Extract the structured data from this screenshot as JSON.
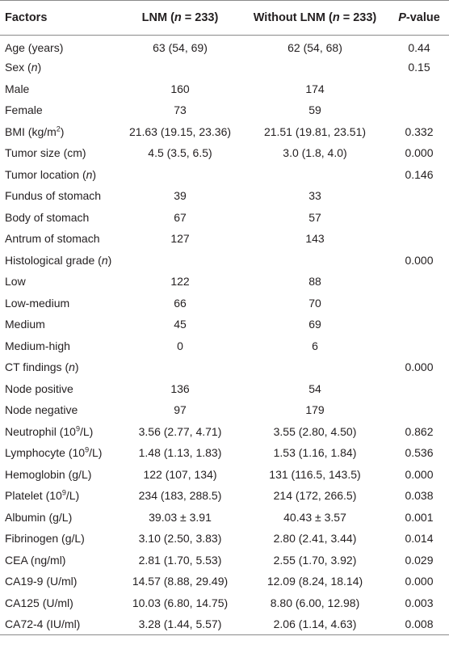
{
  "header": {
    "factors": "Factors",
    "lnm_prefix": "LNM (",
    "lnm_n": "n",
    "lnm_suffix": " = 233)",
    "without_prefix": "Without LNM (",
    "without_n": "n",
    "without_suffix": " = 233)",
    "p_italic": "P",
    "p_suffix": "-value"
  },
  "rows": {
    "age": {
      "label": "Age (years)",
      "lnm": "63 (54, 69)",
      "without": "62 (54, 68)",
      "p": "0.44"
    },
    "sex": {
      "label_pre": "Sex (",
      "label_n": "n",
      "label_post": ")",
      "p": "0.15"
    },
    "male": {
      "label": "Male",
      "lnm": "160",
      "without": "174"
    },
    "female": {
      "label": "Female",
      "lnm": "73",
      "without": "59"
    },
    "bmi": {
      "label_pre": "BMI (kg/m",
      "label_sup": "2",
      "label_post": ")",
      "lnm": "21.63 (19.15, 23.36)",
      "without": "21.51 (19.81, 23.51)",
      "p": "0.332"
    },
    "tumor_size": {
      "label": "Tumor size (cm)",
      "lnm": "4.5 (3.5, 6.5)",
      "without": "3.0 (1.8, 4.0)",
      "p": "0.000"
    },
    "tumor_location": {
      "label_pre": "Tumor location (",
      "label_n": "n",
      "label_post": ")",
      "p": "0.146"
    },
    "fundus": {
      "label": "Fundus of stomach",
      "lnm": "39",
      "without": "33"
    },
    "body": {
      "label": "Body of stomach",
      "lnm": "67",
      "without": "57"
    },
    "antrum": {
      "label": "Antrum of stomach",
      "lnm": "127",
      "without": "143"
    },
    "hist_grade": {
      "label_pre": "Histological grade (",
      "label_n": "n",
      "label_post": ")",
      "p": "0.000"
    },
    "low": {
      "label": "Low",
      "lnm": "122",
      "without": "88"
    },
    "low_medium": {
      "label": "Low-medium",
      "lnm": "66",
      "without": "70"
    },
    "medium": {
      "label": "Medium",
      "lnm": "45",
      "without": "69"
    },
    "medium_high": {
      "label": "Medium-high",
      "lnm": "0",
      "without": "6"
    },
    "ct": {
      "label_pre": "CT findings (",
      "label_n": "n",
      "label_post": ")",
      "p": "0.000"
    },
    "node_pos": {
      "label": "Node positive",
      "lnm": "136",
      "without": "54"
    },
    "node_neg": {
      "label": "Node negative",
      "lnm": "97",
      "without": "179"
    },
    "neutrophil": {
      "label_pre": "Neutrophil (10",
      "label_sup": "9",
      "label_post": "/L)",
      "lnm": "3.56 (2.77, 4.71)",
      "without": "3.55 (2.80, 4.50)",
      "p": "0.862"
    },
    "lymphocyte": {
      "label_pre": "Lymphocyte (10",
      "label_sup": "9",
      "label_post": "/L)",
      "lnm": "1.48 (1.13, 1.83)",
      "without": "1.53 (1.16, 1.84)",
      "p": "0.536"
    },
    "hemoglobin": {
      "label": "Hemoglobin (g/L)",
      "lnm": "122 (107, 134)",
      "without": "131 (116.5, 143.5)",
      "p": "0.000"
    },
    "platelet": {
      "label_pre": "Platelet (10",
      "label_sup": "9",
      "label_post": "/L)",
      "lnm": "234 (183, 288.5)",
      "without": "214 (172, 266.5)",
      "p": "0.038"
    },
    "albumin": {
      "label": "Albumin (g/L)",
      "lnm": "39.03 ± 3.91",
      "without": "40.43 ± 3.57",
      "p": "0.001"
    },
    "fibrinogen": {
      "label": "Fibrinogen (g/L)",
      "lnm": "3.10 (2.50, 3.83)",
      "without": "2.80 (2.41, 3.44)",
      "p": "0.014"
    },
    "cea": {
      "label": "CEA (ng/ml)",
      "lnm": "2.81 (1.70, 5.53)",
      "without": "2.55 (1.70, 3.92)",
      "p": "0.029"
    },
    "ca199": {
      "label": "CA19-9 (U/ml)",
      "lnm": "14.57 (8.88, 29.49)",
      "without": "12.09 (8.24, 18.14)",
      "p": "0.000"
    },
    "ca125": {
      "label": "CA125 (U/ml)",
      "lnm": "10.03 (6.80, 14.75)",
      "without": "8.80 (6.00, 12.98)",
      "p": "0.003"
    },
    "ca724": {
      "label": "CA72-4 (IU/ml)",
      "lnm": "3.28 (1.44, 5.57)",
      "without": "2.06 (1.14, 4.63)",
      "p": "0.008"
    }
  }
}
